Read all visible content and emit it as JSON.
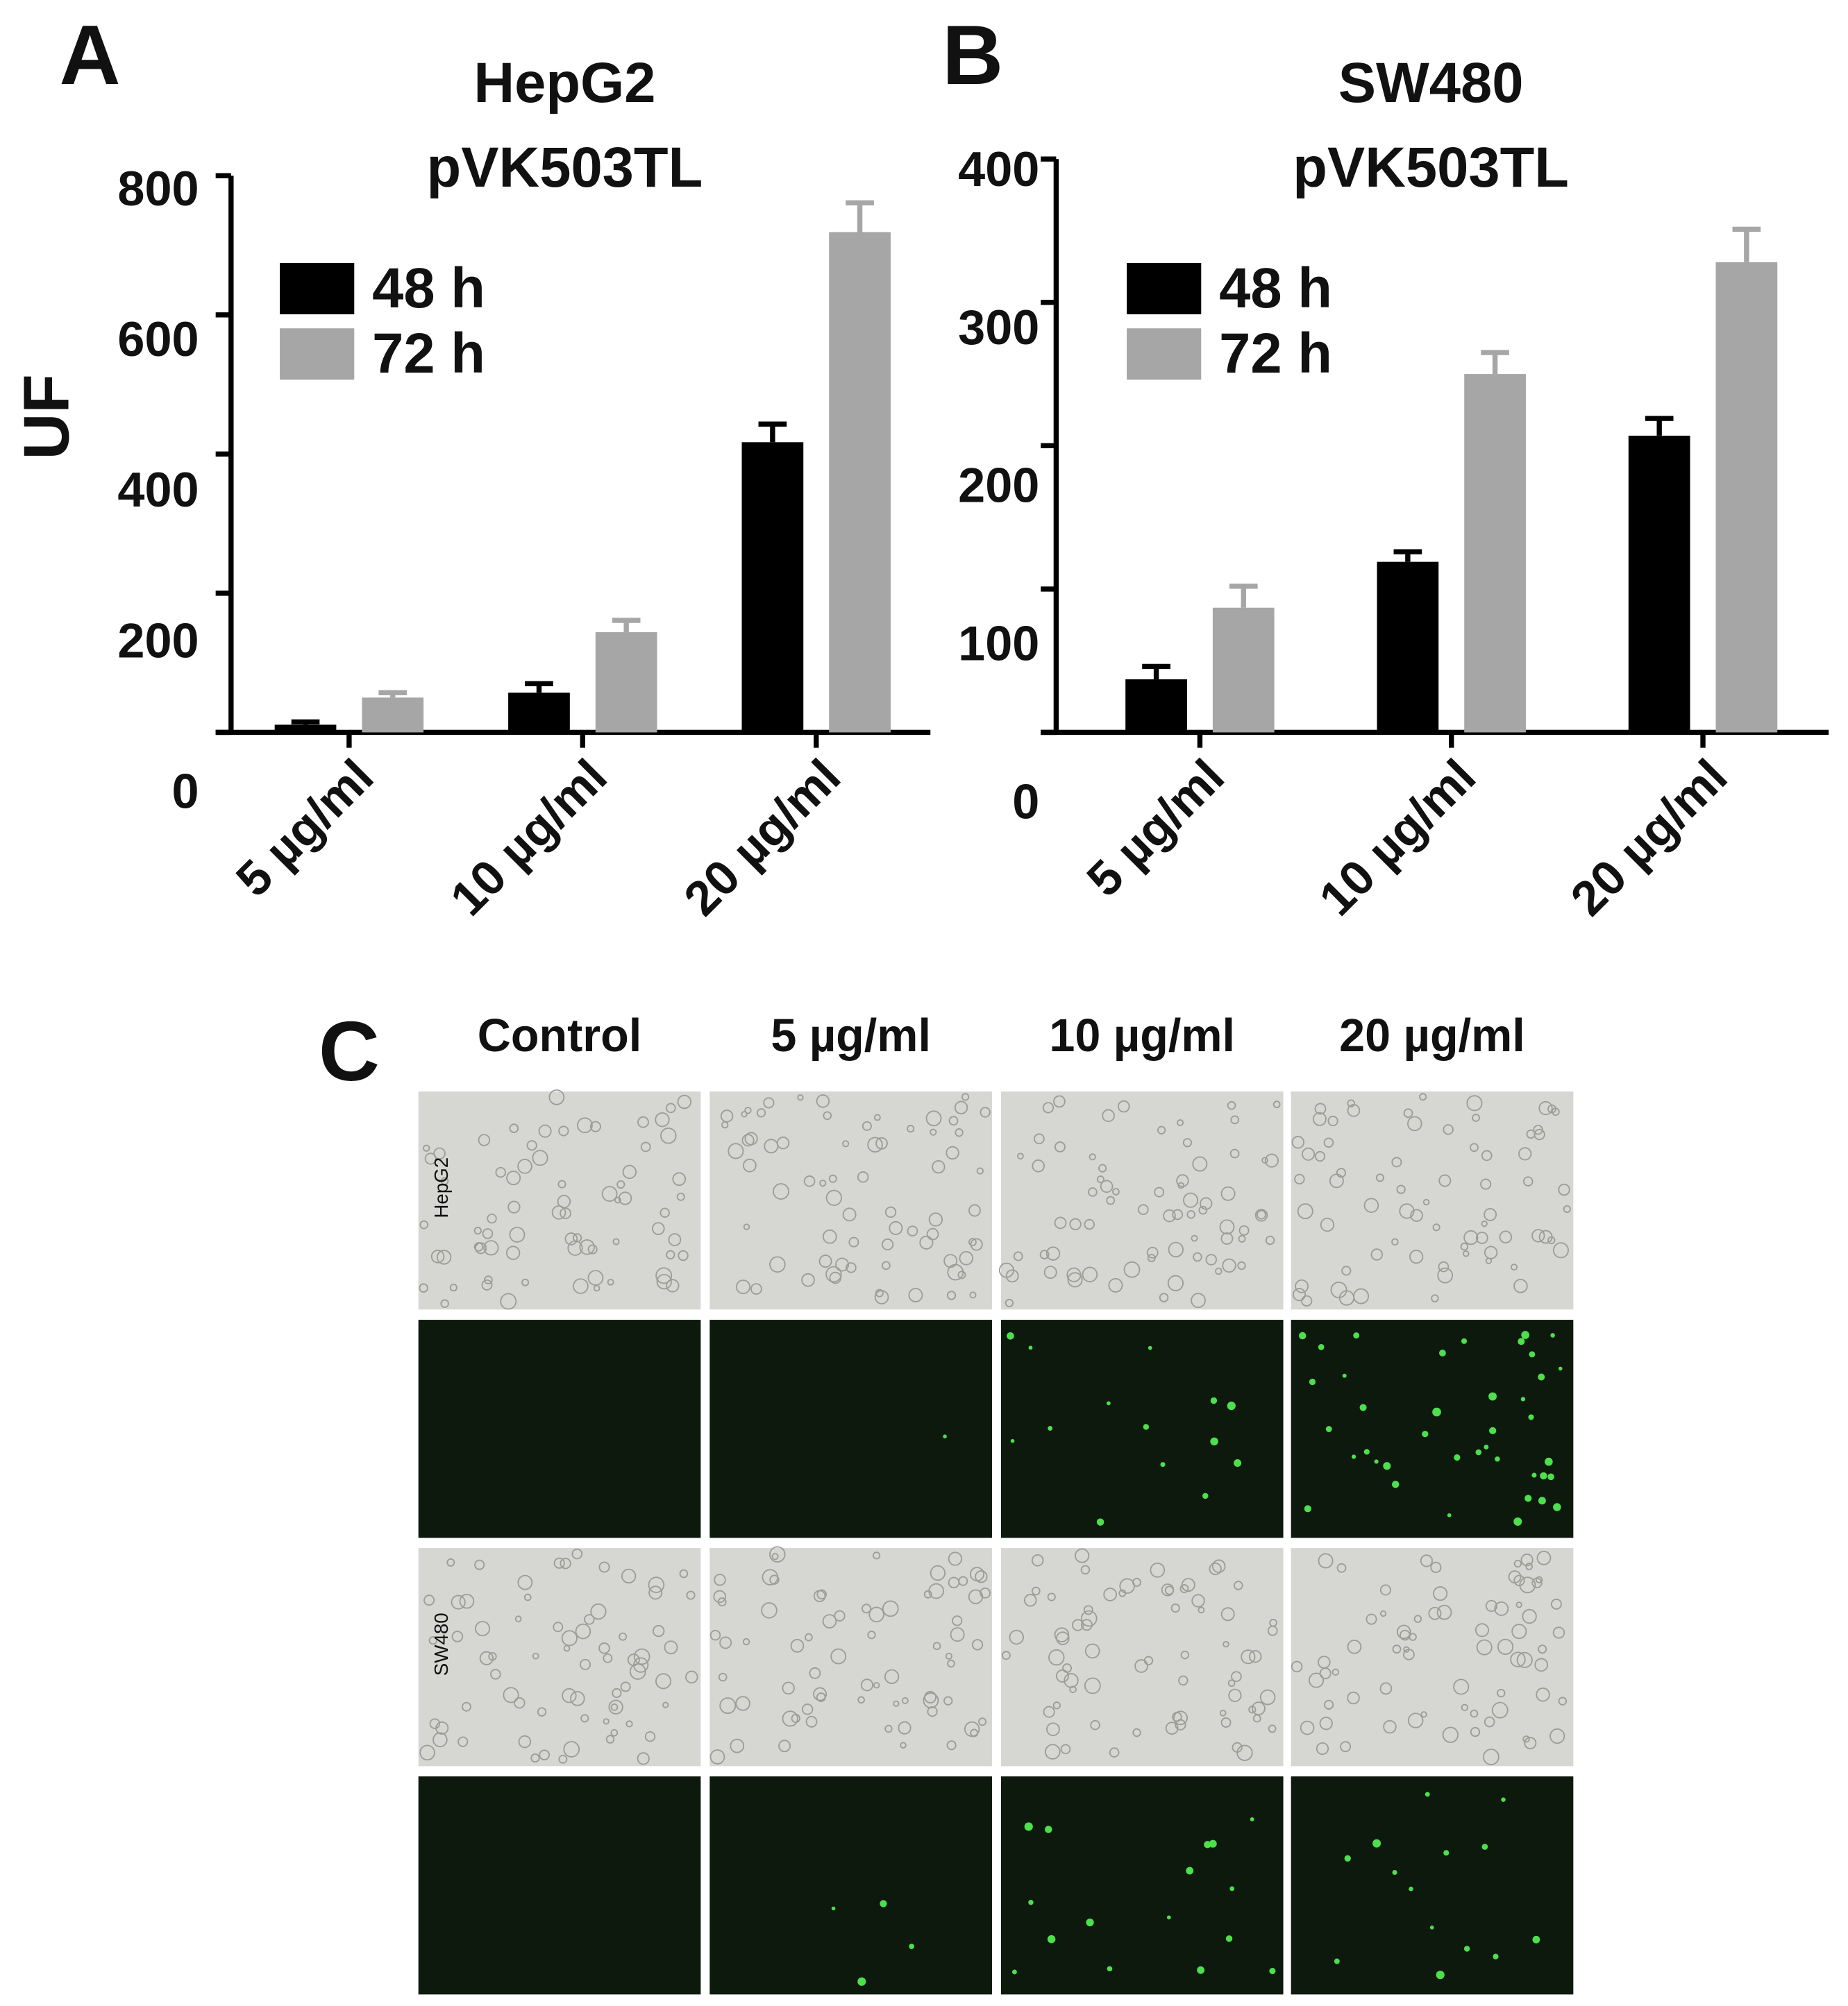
{
  "chart_data": [
    {
      "type": "bar",
      "panel": "A",
      "title": "HepG2",
      "subtitle": "pVK503TL",
      "ylabel": "UF",
      "categories": [
        "5 µg/ml",
        "10 µg/ml",
        "20 µg/ml"
      ],
      "series": [
        {
          "name": "48 h",
          "color": "#000000",
          "values": [
            11,
            57,
            417
          ],
          "errors": [
            4,
            13,
            26
          ]
        },
        {
          "name": "72 h",
          "color": "#a6a6a6",
          "values": [
            50,
            144,
            719
          ],
          "errors": [
            7,
            17,
            42
          ]
        }
      ],
      "ylim": [
        0,
        800
      ],
      "yticks": [
        0,
        200,
        400,
        600,
        800
      ]
    },
    {
      "type": "bar",
      "panel": "B",
      "title": "SW480",
      "subtitle": "pVK503TL",
      "categories": [
        "5 µg/ml",
        "10 µg/ml",
        "20 µg/ml"
      ],
      "series": [
        {
          "name": "48 h",
          "color": "#000000",
          "values": [
            37,
            119,
            207
          ],
          "errors": [
            9,
            7,
            12
          ]
        },
        {
          "name": "72 h",
          "color": "#a6a6a6",
          "values": [
            87,
            250,
            328
          ],
          "errors": [
            15,
            15,
            23
          ]
        }
      ],
      "ylim": [
        0,
        400
      ],
      "yticks": [
        0,
        100,
        200,
        300,
        400
      ]
    }
  ],
  "panel_c": {
    "label": "C",
    "columns": [
      "Control",
      "5 µg/ml",
      "10 µg/ml",
      "20 µg/ml"
    ],
    "rows": [
      "HepG2",
      "SW480"
    ]
  }
}
